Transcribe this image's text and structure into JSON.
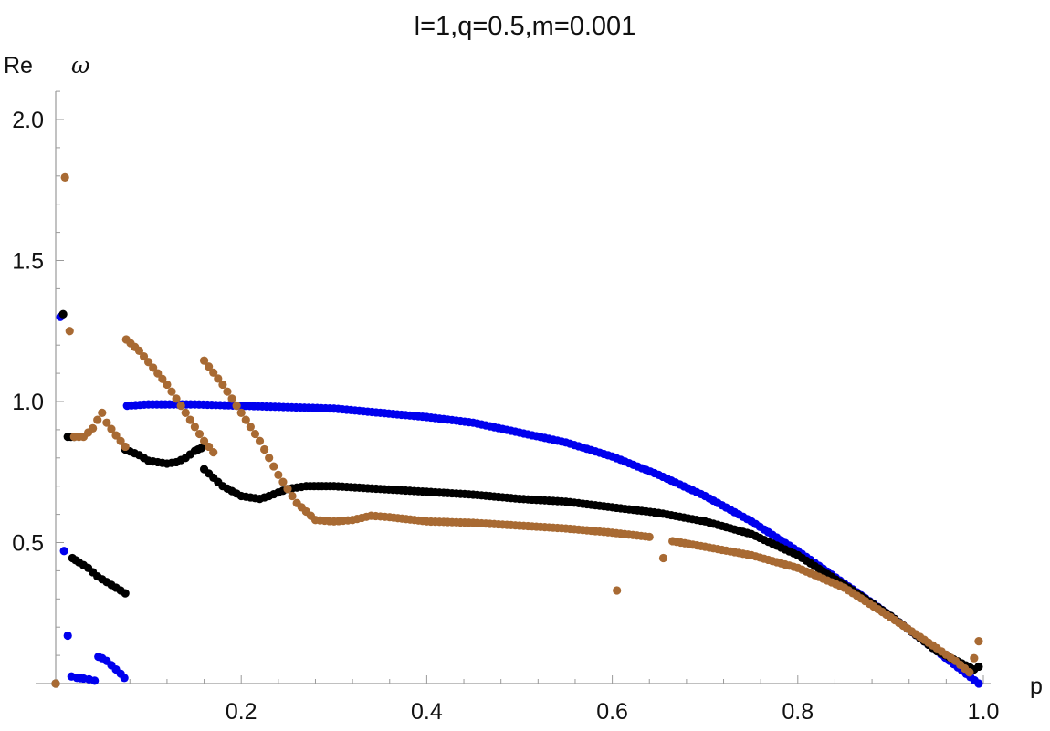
{
  "chart_data": {
    "type": "scatter",
    "title": "l=1,q=0.5,m=0.001",
    "xlabel": "p",
    "ylabel_prefix": "Re",
    "ylabel_symbol": "ω",
    "xlim": [
      0.0,
      1.0
    ],
    "ylim": [
      0.0,
      2.0
    ],
    "x_ticks": [
      0.2,
      0.4,
      0.6,
      0.8,
      1.0
    ],
    "x_tick_labels": [
      "0.2",
      "0.4",
      "0.6",
      "0.8",
      "1.0"
    ],
    "y_ticks": [
      0.5,
      1.0,
      1.5,
      2.0
    ],
    "y_tick_labels": [
      "0.5",
      "1.0",
      "1.5",
      "2.0"
    ],
    "grid": false,
    "legend": "none",
    "series": [
      {
        "color": "#0000ee",
        "segments": [
          [
            [
              0.005,
              1.3
            ]
          ],
          [
            [
              0.009,
              0.47
            ]
          ],
          [
            [
              0.013,
              0.17
            ]
          ],
          [
            [
              0.017,
              0.025
            ],
            [
              0.023,
              0.02
            ],
            [
              0.03,
              0.018
            ],
            [
              0.036,
              0.015
            ],
            [
              0.042,
              0.01
            ]
          ],
          [
            [
              0.046,
              0.095
            ],
            [
              0.05,
              0.09
            ],
            [
              0.055,
              0.08
            ],
            [
              0.06,
              0.065
            ],
            [
              0.065,
              0.05
            ],
            [
              0.07,
              0.035
            ],
            [
              0.074,
              0.02
            ]
          ],
          [
            [
              0.077,
              0.985
            ],
            [
              0.1,
              0.99
            ],
            [
              0.15,
              0.99
            ],
            [
              0.2,
              0.985
            ],
            [
              0.25,
              0.98
            ],
            [
              0.3,
              0.975
            ],
            [
              0.35,
              0.96
            ],
            [
              0.4,
              0.945
            ],
            [
              0.45,
              0.925
            ],
            [
              0.5,
              0.89
            ],
            [
              0.55,
              0.855
            ],
            [
              0.6,
              0.805
            ],
            [
              0.65,
              0.74
            ],
            [
              0.7,
              0.665
            ],
            [
              0.75,
              0.575
            ],
            [
              0.8,
              0.47
            ],
            [
              0.85,
              0.355
            ],
            [
              0.9,
              0.24
            ],
            [
              0.95,
              0.115
            ],
            [
              0.995,
              0.0
            ]
          ]
        ]
      },
      {
        "color": "#000000",
        "segments": [
          [
            [
              0.0,
              0.0
            ]
          ],
          [
            [
              0.008,
              1.31
            ]
          ],
          [
            [
              0.013,
              0.875
            ],
            [
              0.02,
              0.875
            ]
          ],
          [
            [
              0.018,
              0.445
            ],
            [
              0.025,
              0.43
            ],
            [
              0.035,
              0.41
            ],
            [
              0.045,
              0.38
            ],
            [
              0.055,
              0.36
            ],
            [
              0.065,
              0.34
            ],
            [
              0.075,
              0.32
            ]
          ],
          [
            [
              0.075,
              0.83
            ],
            [
              0.09,
              0.81
            ],
            [
              0.1,
              0.79
            ],
            [
              0.12,
              0.78
            ],
            [
              0.13,
              0.785
            ],
            [
              0.14,
              0.8
            ],
            [
              0.15,
              0.825
            ],
            [
              0.157,
              0.835
            ]
          ],
          [
            [
              0.16,
              0.76
            ],
            [
              0.18,
              0.7
            ],
            [
              0.2,
              0.665
            ],
            [
              0.22,
              0.655
            ],
            [
              0.23,
              0.665
            ],
            [
              0.25,
              0.69
            ],
            [
              0.27,
              0.7
            ],
            [
              0.3,
              0.7
            ],
            [
              0.35,
              0.69
            ],
            [
              0.4,
              0.68
            ],
            [
              0.45,
              0.67
            ],
            [
              0.5,
              0.655
            ],
            [
              0.55,
              0.645
            ],
            [
              0.6,
              0.625
            ],
            [
              0.65,
              0.605
            ],
            [
              0.7,
              0.575
            ],
            [
              0.75,
              0.53
            ],
            [
              0.8,
              0.455
            ],
            [
              0.85,
              0.35
            ],
            [
              0.9,
              0.24
            ],
            [
              0.95,
              0.115
            ],
            [
              0.99,
              0.05
            ]
          ],
          [
            [
              0.995,
              0.06
            ]
          ]
        ]
      },
      {
        "color": "#a86a33",
        "segments": [
          [
            [
              0.0,
              0.0
            ]
          ],
          [
            [
              0.01,
              1.795
            ]
          ],
          [
            [
              0.015,
              1.25
            ]
          ],
          [
            [
              0.02,
              0.875
            ],
            [
              0.03,
              0.875
            ],
            [
              0.04,
              0.905
            ],
            [
              0.045,
              0.935
            ],
            [
              0.05,
              0.96
            ],
            [
              0.055,
              0.925
            ],
            [
              0.065,
              0.88
            ],
            [
              0.075,
              0.84
            ]
          ],
          [
            [
              0.076,
              1.22
            ],
            [
              0.09,
              1.18
            ],
            [
              0.1,
              1.14
            ],
            [
              0.12,
              1.06
            ],
            [
              0.14,
              0.96
            ],
            [
              0.16,
              0.86
            ],
            [
              0.17,
              0.82
            ]
          ],
          [
            [
              0.16,
              1.145
            ],
            [
              0.18,
              1.06
            ],
            [
              0.2,
              0.96
            ],
            [
              0.22,
              0.86
            ],
            [
              0.24,
              0.74
            ],
            [
              0.26,
              0.64
            ],
            [
              0.28,
              0.58
            ],
            [
              0.3,
              0.575
            ],
            [
              0.32,
              0.58
            ],
            [
              0.34,
              0.595
            ],
            [
              0.36,
              0.59
            ],
            [
              0.4,
              0.575
            ],
            [
              0.45,
              0.57
            ],
            [
              0.5,
              0.56
            ],
            [
              0.55,
              0.55
            ],
            [
              0.6,
              0.535
            ],
            [
              0.64,
              0.52
            ]
          ],
          [
            [
              0.605,
              0.33
            ]
          ],
          [
            [
              0.655,
              0.445
            ]
          ],
          [
            [
              0.665,
              0.505
            ],
            [
              0.7,
              0.485
            ],
            [
              0.75,
              0.455
            ],
            [
              0.8,
              0.41
            ],
            [
              0.85,
              0.34
            ],
            [
              0.9,
              0.235
            ],
            [
              0.95,
              0.125
            ],
            [
              0.97,
              0.08
            ],
            [
              0.985,
              0.04
            ]
          ],
          [
            [
              0.985,
              0.04
            ]
          ],
          [
            [
              0.99,
              0.09
            ]
          ],
          [
            [
              0.995,
              0.15
            ]
          ]
        ]
      }
    ]
  }
}
